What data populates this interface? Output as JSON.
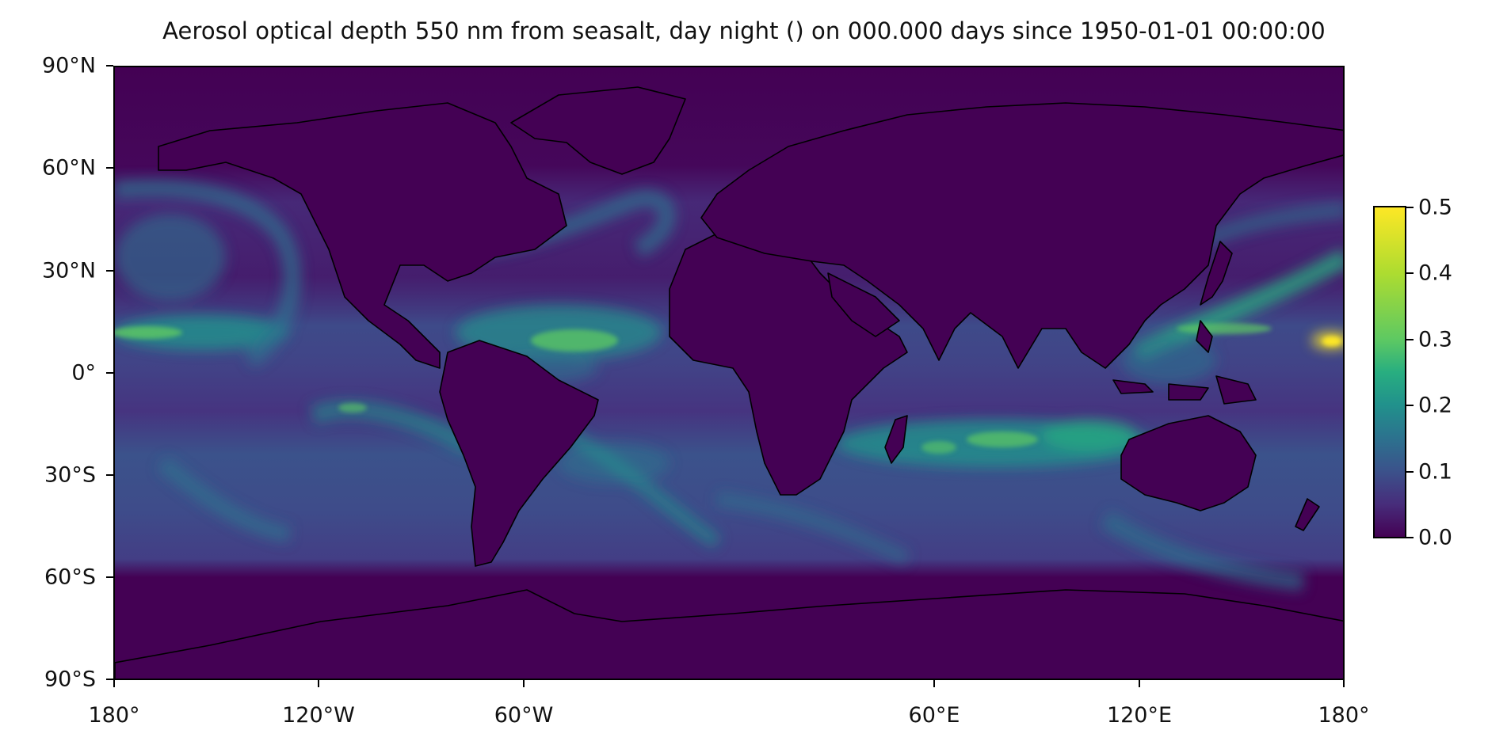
{
  "title": "Aerosol optical depth 550 nm from seasalt, day night () on 000.000 days since 1950-01-01 00:00:00",
  "map": {
    "projection": "plate-carree",
    "variable_units": "",
    "colormap": "viridis",
    "value_range": [
      0.0,
      0.5
    ],
    "background_color": "#440154",
    "coastline_color": "#000000",
    "lon_range": [
      -180,
      180
    ],
    "lat_range": [
      -90,
      90
    ]
  },
  "y_ticks": [
    {
      "label": "90°N",
      "value": 90
    },
    {
      "label": "60°N",
      "value": 60
    },
    {
      "label": "30°N",
      "value": 30
    },
    {
      "label": "0°",
      "value": 0
    },
    {
      "label": "30°S",
      "value": -30
    },
    {
      "label": "60°S",
      "value": -60
    },
    {
      "label": "90°S",
      "value": -90
    }
  ],
  "x_ticks": [
    {
      "label": "180°",
      "value": -180
    },
    {
      "label": "120°W",
      "value": -120
    },
    {
      "label": "60°W",
      "value": -60
    },
    {
      "label": "60°E",
      "value": 60
    },
    {
      "label": "120°E",
      "value": 120
    },
    {
      "label": "180°",
      "value": 180
    }
  ],
  "colorbar": {
    "ticks": [
      {
        "label": "0.5",
        "value": 0.5
      },
      {
        "label": "0.4",
        "value": 0.4
      },
      {
        "label": "0.3",
        "value": 0.3
      },
      {
        "label": "0.2",
        "value": 0.2
      },
      {
        "label": "0.1",
        "value": 0.1
      },
      {
        "label": "0.0",
        "value": 0.0
      }
    ]
  }
}
